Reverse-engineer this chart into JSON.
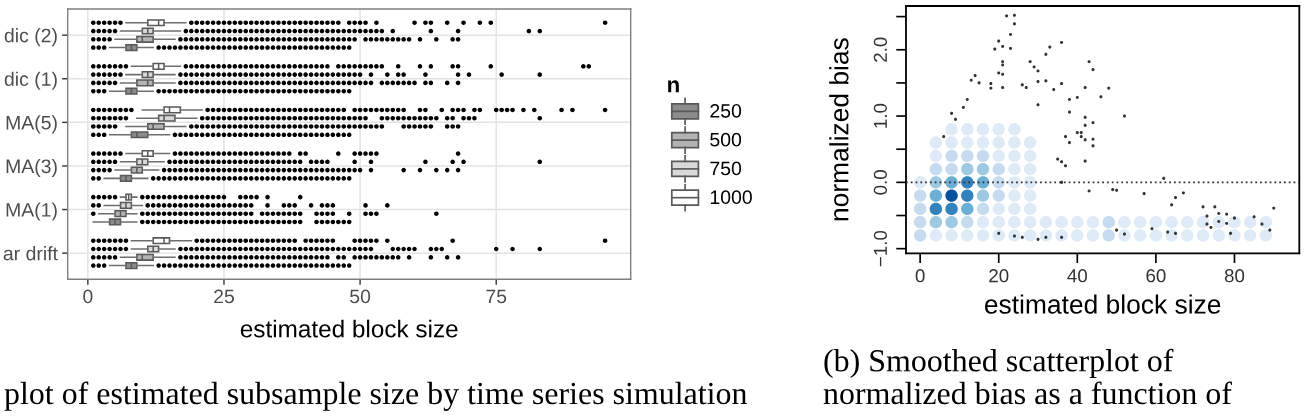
{
  "chart_data": [
    {
      "type": "box",
      "orientation": "horizontal",
      "categories": [
        "dic (2)",
        "dic (1)",
        "MA(5)",
        "MA(3)",
        "MA(1)",
        "ar drift"
      ],
      "xlabel": "estimated block size",
      "xlim": [
        -3.7,
        99.7
      ],
      "xticks": [
        0,
        25,
        50,
        75
      ],
      "grid": true,
      "marker": "circle",
      "legend": "right",
      "legend_title": "n",
      "annotations": [
        "plot of estimated subsample size by time series simulation"
      ],
      "series": [
        {
          "name": "250",
          "color": "#8c8c8c",
          "boxes": [
            {
              "low": 4,
              "q1": 7,
              "median": 8,
              "q3": 9,
              "high": 12,
              "outliers": [
                1,
                2,
                3,
                13,
                14,
                15,
                16,
                17,
                18,
                19,
                20,
                21,
                22,
                23,
                24,
                25,
                26,
                27,
                28,
                29,
                30,
                31,
                32,
                33,
                34,
                35,
                36,
                37,
                38,
                39,
                40,
                41,
                42,
                43,
                44,
                45,
                46,
                47,
                48
              ]
            },
            {
              "low": 4,
              "q1": 7,
              "median": 8,
              "q3": 9,
              "high": 12,
              "outliers": [
                1,
                2,
                3,
                13,
                14,
                15,
                16,
                17,
                18,
                19,
                20,
                21,
                22,
                23,
                24,
                25,
                26,
                27,
                28,
                29,
                30,
                31,
                32,
                33,
                34,
                35,
                36,
                37,
                38,
                39,
                40,
                41,
                42,
                43,
                44,
                45,
                46,
                47,
                48
              ]
            },
            {
              "low": 4,
              "q1": 8,
              "median": 9,
              "q3": 11,
              "high": 15,
              "outliers": [
                1,
                2,
                3,
                16,
                17,
                18,
                19,
                20,
                21,
                22,
                23,
                24,
                25,
                26,
                27,
                28,
                29,
                30,
                31,
                32,
                33,
                34,
                35,
                36,
                37,
                38,
                39,
                40,
                41,
                42,
                43,
                44,
                45,
                46,
                47,
                48
              ]
            },
            {
              "low": 3,
              "q1": 6,
              "median": 7,
              "q3": 8,
              "high": 11,
              "outliers": [
                1,
                2,
                12,
                13,
                14,
                15,
                16,
                17,
                18,
                19,
                20,
                21,
                22,
                23,
                24,
                25,
                26,
                27,
                28,
                29,
                30,
                31,
                32,
                33,
                34,
                35,
                36,
                37,
                38,
                39,
                40,
                41,
                42,
                43,
                44,
                45,
                46,
                47,
                48
              ]
            },
            {
              "low": 1,
              "q1": 4,
              "median": 5,
              "q3": 6,
              "high": 9,
              "outliers": [
                10,
                11,
                12,
                13,
                14,
                15,
                16,
                17,
                18,
                19,
                20,
                21,
                22,
                23,
                24,
                25,
                26,
                27,
                28,
                29,
                30,
                31,
                32,
                33,
                34,
                35,
                36,
                37,
                38,
                39,
                42,
                43,
                44,
                45,
                46,
                47,
                48
              ]
            },
            {
              "low": 4,
              "q1": 7,
              "median": 8,
              "q3": 9,
              "high": 12,
              "outliers": [
                1,
                2,
                3,
                13,
                14,
                15,
                16,
                17,
                18,
                19,
                20,
                21,
                22,
                23,
                24,
                25,
                26,
                27,
                28,
                29,
                30,
                31,
                32,
                33,
                34,
                35,
                36,
                37,
                38,
                39,
                40,
                41,
                42,
                43,
                44,
                45,
                46,
                47,
                48
              ]
            }
          ]
        },
        {
          "name": "500",
          "color": "#b3b3b3",
          "boxes": [
            {
              "low": 5,
              "q1": 9,
              "median": 10,
              "q3": 12,
              "high": 16,
              "outliers": [
                1,
                2,
                3,
                4,
                17,
                18,
                19,
                20,
                21,
                22,
                23,
                24,
                25,
                26,
                27,
                28,
                29,
                30,
                31,
                32,
                33,
                34,
                35,
                36,
                37,
                38,
                39,
                40,
                41,
                42,
                43,
                44,
                45,
                46,
                47,
                48,
                49,
                51,
                52,
                53,
                54,
                55,
                56,
                57,
                58,
                59,
                61,
                64,
                67,
                68
              ]
            },
            {
              "low": 6,
              "q1": 9,
              "median": 11,
              "q3": 12,
              "high": 16,
              "outliers": [
                1,
                2,
                3,
                4,
                5,
                17,
                18,
                19,
                20,
                21,
                22,
                23,
                24,
                25,
                26,
                27,
                28,
                29,
                30,
                31,
                32,
                33,
                34,
                35,
                36,
                37,
                38,
                39,
                40,
                41,
                42,
                43,
                44,
                45,
                46,
                47,
                48,
                49,
                50,
                51,
                52,
                54,
                55,
                56,
                57,
                58,
                59,
                60,
                62,
                63,
                66,
                68
              ]
            },
            {
              "low": 7,
              "q1": 11,
              "median": 12,
              "q3": 14,
              "high": 18,
              "outliers": [
                1,
                2,
                3,
                4,
                5,
                19,
                20,
                21,
                22,
                23,
                24,
                25,
                26,
                27,
                28,
                29,
                30,
                31,
                32,
                33,
                34,
                35,
                36,
                37,
                38,
                39,
                40,
                41,
                42,
                43,
                44,
                45,
                46,
                47,
                48,
                49,
                50,
                51,
                52,
                53,
                54,
                58,
                59,
                60,
                61,
                62,
                63,
                66,
                67,
                68
              ]
            },
            {
              "low": 5,
              "q1": 8,
              "median": 9,
              "q3": 10,
              "high": 13,
              "outliers": [
                1,
                2,
                3,
                4,
                14,
                15,
                16,
                17,
                18,
                19,
                20,
                21,
                22,
                23,
                24,
                25,
                26,
                27,
                28,
                29,
                30,
                31,
                32,
                33,
                34,
                35,
                36,
                37,
                38,
                39,
                40,
                41,
                42,
                43,
                44,
                45,
                46,
                47,
                48,
                49,
                50,
                52,
                58,
                61,
                64,
                66,
                68
              ]
            },
            {
              "low": 2,
              "q1": 5,
              "median": 6,
              "q3": 7,
              "high": 9,
              "outliers": [
                1,
                10,
                11,
                12,
                13,
                14,
                15,
                16,
                17,
                18,
                19,
                20,
                21,
                22,
                23,
                24,
                25,
                26,
                27,
                28,
                29,
                30,
                32,
                33,
                34,
                35,
                36,
                37,
                38,
                39,
                42,
                43,
                44,
                45,
                48,
                51,
                52,
                53,
                64
              ]
            },
            {
              "low": 6,
              "q1": 9,
              "median": 10,
              "q3": 12,
              "high": 16,
              "outliers": [
                1,
                2,
                3,
                4,
                5,
                17,
                18,
                19,
                20,
                21,
                22,
                23,
                24,
                25,
                26,
                27,
                28,
                29,
                30,
                31,
                32,
                33,
                34,
                35,
                36,
                37,
                38,
                39,
                40,
                41,
                42,
                43,
                44,
                46,
                47,
                49,
                50,
                51,
                52,
                53,
                54,
                55,
                56,
                57,
                59,
                63,
                66,
                68
              ]
            }
          ]
        },
        {
          "name": "750",
          "color": "#d9d9d9",
          "boxes": [
            {
              "low": 6,
              "q1": 10,
              "median": 11,
              "q3": 12,
              "high": 17,
              "outliers": [
                1,
                2,
                3,
                4,
                5,
                18,
                19,
                20,
                21,
                22,
                23,
                24,
                25,
                26,
                27,
                28,
                29,
                30,
                31,
                32,
                33,
                34,
                35,
                36,
                37,
                38,
                39,
                40,
                41,
                42,
                43,
                44,
                45,
                46,
                47,
                48,
                49,
                50,
                51,
                52,
                53,
                54,
                56,
                63,
                68,
                81,
                83
              ]
            },
            {
              "low": 7,
              "q1": 10,
              "median": 11,
              "q3": 12,
              "high": 16,
              "outliers": [
                1,
                2,
                3,
                4,
                5,
                6,
                17,
                18,
                19,
                20,
                21,
                22,
                23,
                24,
                25,
                26,
                27,
                28,
                29,
                30,
                31,
                32,
                33,
                34,
                35,
                36,
                37,
                38,
                39,
                40,
                41,
                42,
                43,
                44,
                45,
                46,
                47,
                48,
                49,
                50,
                52,
                55,
                57,
                58,
                62,
                68,
                70,
                76,
                83
              ]
            },
            {
              "low": 9,
              "q1": 13,
              "median": 14,
              "q3": 16,
              "high": 20,
              "outliers": [
                1,
                2,
                3,
                4,
                5,
                6,
                7,
                21,
                22,
                23,
                24,
                25,
                26,
                27,
                28,
                29,
                30,
                31,
                32,
                33,
                34,
                35,
                36,
                37,
                38,
                39,
                40,
                41,
                42,
                43,
                44,
                45,
                46,
                47,
                48,
                49,
                50,
                51,
                54,
                55,
                56,
                57,
                58,
                59,
                60,
                61,
                62,
                63,
                64,
                66,
                67,
                69,
                70,
                71,
                83
              ]
            },
            {
              "low": 6,
              "q1": 9,
              "median": 10,
              "q3": 11,
              "high": 14,
              "outliers": [
                1,
                2,
                3,
                4,
                5,
                15,
                16,
                17,
                18,
                19,
                20,
                21,
                22,
                23,
                24,
                25,
                26,
                27,
                28,
                29,
                30,
                31,
                32,
                33,
                34,
                35,
                36,
                37,
                38,
                39,
                41,
                42,
                43,
                44,
                49,
                52,
                62,
                67,
                69,
                83
              ]
            },
            {
              "low": 3,
              "q1": 6,
              "median": 7,
              "q3": 8,
              "high": 10,
              "outliers": [
                1,
                2,
                11,
                12,
                13,
                14,
                15,
                16,
                17,
                18,
                19,
                20,
                21,
                22,
                23,
                24,
                25,
                26,
                27,
                28,
                29,
                30,
                33,
                36,
                37,
                38,
                41,
                43,
                44,
                45,
                51,
                55
              ]
            },
            {
              "low": 8,
              "q1": 11,
              "median": 12,
              "q3": 13,
              "high": 16,
              "outliers": [
                1,
                2,
                3,
                4,
                5,
                6,
                7,
                17,
                18,
                19,
                20,
                21,
                22,
                23,
                24,
                25,
                26,
                27,
                28,
                29,
                30,
                31,
                32,
                33,
                34,
                35,
                36,
                37,
                38,
                39,
                40,
                41,
                42,
                43,
                44,
                45,
                46,
                47,
                48,
                49,
                50,
                51,
                52,
                56,
                57,
                58,
                59,
                60,
                63,
                64,
                65,
                75,
                78,
                83
              ]
            }
          ]
        },
        {
          "name": "1000",
          "color": "#ffffff",
          "boxes": [
            {
              "low": 7,
              "q1": 11,
              "median": 13,
              "q3": 14,
              "high": 18,
              "outliers": [
                1,
                2,
                3,
                4,
                5,
                6,
                19,
                20,
                21,
                22,
                23,
                24,
                25,
                26,
                27,
                28,
                29,
                30,
                31,
                32,
                33,
                34,
                35,
                36,
                37,
                38,
                39,
                40,
                41,
                42,
                43,
                44,
                45,
                46,
                48,
                49,
                50,
                51,
                53,
                60,
                62,
                63,
                66,
                69,
                72,
                74,
                95
              ]
            },
            {
              "low": 8,
              "q1": 12,
              "median": 13,
              "q3": 14,
              "high": 17,
              "outliers": [
                1,
                2,
                3,
                4,
                5,
                6,
                7,
                18,
                19,
                20,
                21,
                22,
                23,
                24,
                25,
                26,
                27,
                28,
                29,
                30,
                31,
                32,
                33,
                34,
                35,
                36,
                37,
                38,
                39,
                40,
                41,
                42,
                43,
                44,
                46,
                47,
                48,
                49,
                50,
                51,
                52,
                53,
                54,
                57,
                61,
                63,
                67,
                68,
                74,
                91,
                92
              ]
            },
            {
              "low": 10,
              "q1": 14,
              "median": 15,
              "q3": 17,
              "high": 21,
              "outliers": [
                1,
                2,
                3,
                4,
                5,
                6,
                7,
                8,
                22,
                23,
                24,
                25,
                26,
                27,
                28,
                29,
                30,
                31,
                32,
                33,
                34,
                35,
                36,
                37,
                38,
                39,
                40,
                41,
                42,
                43,
                44,
                45,
                46,
                47,
                49,
                50,
                51,
                52,
                53,
                54,
                55,
                56,
                57,
                58,
                61,
                62,
                65,
                67,
                68,
                69,
                71,
                72,
                75,
                76,
                77,
                78,
                80,
                82,
                87,
                89,
                95
              ]
            },
            {
              "low": 7,
              "q1": 10,
              "median": 11,
              "q3": 12,
              "high": 15,
              "outliers": [
                1,
                2,
                3,
                4,
                5,
                6,
                16,
                17,
                18,
                19,
                20,
                21,
                22,
                23,
                24,
                25,
                26,
                27,
                28,
                29,
                30,
                31,
                32,
                33,
                34,
                35,
                36,
                37,
                39,
                40,
                46,
                49,
                50,
                51,
                52,
                53,
                68
              ]
            },
            {
              "low": 6,
              "q1": 7,
              "median": 7.5,
              "q3": 8,
              "high": 9,
              "outliers": [
                1,
                2,
                3,
                4,
                5,
                10,
                11,
                12,
                13,
                14,
                15,
                16,
                17,
                18,
                19,
                20,
                21,
                22,
                23,
                24,
                25,
                28,
                29,
                30,
                31,
                33,
                39
              ]
            },
            {
              "low": 8,
              "q1": 12,
              "median": 14,
              "q3": 15,
              "high": 19,
              "outliers": [
                1,
                2,
                3,
                4,
                5,
                6,
                7,
                20,
                21,
                22,
                23,
                24,
                25,
                26,
                27,
                28,
                29,
                30,
                31,
                32,
                33,
                34,
                35,
                36,
                37,
                38,
                40,
                41,
                42,
                43,
                44,
                45,
                49,
                50,
                51,
                52,
                53,
                55,
                67,
                95
              ]
            }
          ]
        }
      ]
    },
    {
      "type": "scatter",
      "xlabel": "estimated block size",
      "ylabel": "normalized bias",
      "xlim": [
        -3.6,
        96.5
      ],
      "ylim": [
        -1.07,
        2.66
      ],
      "xticks": [
        0,
        20,
        40,
        60,
        80
      ],
      "yticks": [
        {
          "value": -1,
          "label": "−1.0"
        },
        {
          "value": -0.5,
          "label": null
        },
        {
          "value": 0,
          "label": "0.0"
        },
        {
          "value": 0.5,
          "label": null
        },
        {
          "value": 1,
          "label": "1.0"
        },
        {
          "value": 1.5,
          "label": null
        },
        {
          "value": 2,
          "label": "2.0"
        },
        {
          "value": 2.5,
          "label": null
        }
      ],
      "marker": "circle",
      "ref_lines": [
        {
          "axis": "y",
          "value": 0,
          "color": "#333333",
          "line_style": "dotted"
        }
      ],
      "annotations": [
        "(b) Smoothed scatterplot of\nnormalized bias as a function of"
      ],
      "series": [
        {
          "type": "bubble",
          "x": [
            8,
            12,
            16,
            20,
            24,
            4,
            8,
            12,
            16,
            20,
            24,
            28,
            4,
            8,
            12,
            16,
            20,
            24,
            28,
            4,
            8,
            12,
            16,
            20,
            24,
            28,
            0,
            4,
            8,
            12,
            16,
            20,
            24,
            28,
            0,
            4,
            8,
            12,
            16,
            20,
            24,
            28,
            0,
            4,
            8,
            12,
            16,
            20,
            24,
            28,
            0,
            4,
            8,
            12,
            16,
            20,
            24,
            28,
            32,
            36,
            40,
            44,
            48,
            52,
            56,
            60,
            64,
            68,
            72,
            76,
            80,
            84,
            88,
            0,
            4,
            8,
            12,
            16,
            20,
            24,
            28,
            32,
            36,
            40,
            44,
            48,
            52,
            56,
            60,
            64,
            68,
            72,
            76,
            80,
            84,
            88
          ],
          "values": [
            0.8,
            0.8,
            0.8,
            0.8,
            0.8,
            0.6,
            0.6,
            0.6,
            0.6,
            0.6,
            0.6,
            0.6,
            0.4,
            0.4,
            0.4,
            0.4,
            0.4,
            0.4,
            0.4,
            0.2,
            0.2,
            0.2,
            0.2,
            0.2,
            0.2,
            0.2,
            0.0,
            0.0,
            0.0,
            0.0,
            0.0,
            0.0,
            0.0,
            0.0,
            -0.2,
            -0.2,
            -0.2,
            -0.2,
            -0.2,
            -0.2,
            -0.2,
            -0.2,
            -0.4,
            -0.4,
            -0.4,
            -0.4,
            -0.4,
            -0.4,
            -0.4,
            -0.4,
            -0.6,
            -0.6,
            -0.6,
            -0.6,
            -0.6,
            -0.6,
            -0.6,
            -0.6,
            -0.6,
            -0.6,
            -0.6,
            -0.6,
            -0.6,
            -0.6,
            -0.6,
            -0.6,
            -0.6,
            -0.6,
            -0.6,
            -0.6,
            -0.6,
            -0.6,
            -0.6,
            -0.8,
            -0.8,
            -0.8,
            -0.8,
            -0.8,
            -0.8,
            -0.8,
            -0.8,
            -0.8,
            -0.8,
            -0.8,
            -0.8,
            -0.8,
            -0.8,
            -0.8,
            -0.8,
            -0.8,
            -0.8,
            -0.8,
            -0.8,
            -0.8,
            -0.8,
            -0.8
          ],
          "sizes": [
            1,
            1,
            1,
            1,
            1,
            1,
            1,
            1,
            1,
            1,
            1,
            1,
            1,
            1,
            1,
            1,
            1,
            1,
            1,
            1,
            1,
            1,
            1,
            1,
            1,
            1,
            1,
            1,
            1,
            1,
            1,
            1,
            1,
            1,
            1,
            1,
            1,
            1,
            1,
            1,
            1,
            1,
            1,
            1,
            1,
            1,
            1,
            1,
            1,
            1,
            1,
            1,
            1,
            1,
            1,
            1,
            1,
            1,
            1,
            1,
            1,
            1,
            1,
            1,
            1,
            1,
            1,
            1,
            1,
            1,
            1,
            1,
            1,
            1,
            1,
            1,
            1,
            1,
            1,
            1,
            1,
            1,
            1,
            1,
            1,
            1,
            1,
            1,
            1,
            1,
            1,
            1,
            1,
            1,
            1,
            1
          ],
          "colors": [
            "#deebf7",
            "#deebf7",
            "#deebf7",
            "#deebf7",
            "#deebf7",
            "#deebf7",
            "#deebf7",
            "#deebf7",
            "#deebf7",
            "#deebf7",
            "#deebf7",
            "#deebf7",
            "#deebf7",
            "#c6dbef",
            "#c6dbef",
            "#c6dbef",
            "#deebf7",
            "#deebf7",
            "#deebf7",
            "#c6dbef",
            "#c6dbef",
            "#9ecae1",
            "#9ecae1",
            "#c6dbef",
            "#deebf7",
            "#deebf7",
            "#deebf7",
            "#9ecae1",
            "#6baed6",
            "#3182bd",
            "#6baed6",
            "#c6dbef",
            "#deebf7",
            "#deebf7",
            "#c6dbef",
            "#6baed6",
            "#08519c",
            "#3182bd",
            "#9ecae1",
            "#c6dbef",
            "#deebf7",
            "#deebf7",
            "#c6dbef",
            "#3182bd",
            "#3182bd",
            "#6baed6",
            "#c6dbef",
            "#deebf7",
            "#deebf7",
            "#deebf7",
            "#c6dbef",
            "#9ecae1",
            "#9ecae1",
            "#c6dbef",
            "#deebf7",
            "#deebf7",
            "#deebf7",
            "#deebf7",
            "#deebf7",
            "#deebf7",
            "#deebf7",
            "#deebf7",
            "#c6dbef",
            "#deebf7",
            "#deebf7",
            "#deebf7",
            "#deebf7",
            "#deebf7",
            "#deebf7",
            "#deebf7",
            "#deebf7",
            "#deebf7",
            "#deebf7",
            "#c6dbef",
            "#deebf7",
            "#deebf7",
            "#deebf7",
            "#deebf7",
            "#deebf7",
            "#deebf7",
            "#deebf7",
            "#deebf7",
            "#deebf7",
            "#deebf7",
            "#deebf7",
            "#c6dbef",
            "#deebf7",
            "#deebf7",
            "#deebf7",
            "#deebf7",
            "#deebf7",
            "#deebf7",
            "#deebf7",
            "#deebf7",
            "#deebf7",
            "#deebf7"
          ]
        },
        {
          "type": "scatter",
          "color": "#333333",
          "x": [
            22,
            24,
            24,
            23,
            20,
            21,
            19,
            23,
            36,
            33,
            32,
            21,
            21,
            28,
            29,
            30,
            43,
            44,
            20,
            21,
            14,
            13,
            15,
            18,
            18,
            21,
            26,
            27,
            30,
            32,
            36,
            34,
            42,
            48,
            46,
            12,
            11,
            30,
            40,
            38,
            38,
            8,
            9,
            52,
            42,
            44,
            42,
            40,
            41,
            37,
            38,
            41,
            42,
            44,
            44,
            6,
            35,
            36,
            37,
            42,
            62,
            36,
            43,
            49,
            50,
            57,
            67,
            65,
            64,
            72,
            75,
            76,
            78,
            73,
            80,
            85,
            90,
            76,
            78,
            73,
            74,
            87,
            89,
            79,
            50,
            52,
            59,
            63,
            65,
            20,
            24,
            26,
            30,
            32,
            36
          ],
          "values": [
            2.51,
            2.52,
            2.39,
            2.23,
            2.13,
            2.05,
            2.01,
            2.02,
            2.11,
            2.04,
            1.93,
            1.82,
            1.77,
            1.82,
            1.74,
            1.68,
            1.82,
            1.7,
            1.65,
            1.63,
            1.61,
            1.54,
            1.5,
            1.49,
            1.42,
            1.43,
            1.47,
            1.43,
            1.52,
            1.53,
            1.49,
            1.4,
            1.43,
            1.42,
            1.29,
            1.25,
            1.13,
            1.17,
            1.28,
            1.25,
            1.06,
            1.04,
            0.95,
            1.0,
            0.98,
            0.9,
            0.86,
            0.75,
            0.75,
            0.69,
            0.6,
            0.69,
            0.64,
            0.65,
            0.55,
            0.69,
            0.35,
            0.31,
            0.25,
            0.32,
            0.06,
            0.0,
            -0.13,
            -0.11,
            -0.12,
            -0.17,
            -0.16,
            -0.23,
            -0.34,
            -0.37,
            -0.37,
            -0.47,
            -0.48,
            -0.51,
            -0.54,
            -0.52,
            -0.39,
            -0.59,
            -0.62,
            -0.63,
            -0.68,
            -0.63,
            -0.72,
            -0.77,
            -0.72,
            -0.78,
            -0.7,
            -0.75,
            -0.77,
            -0.77,
            -0.81,
            -0.83,
            -0.86,
            -0.83,
            -0.83
          ]
        }
      ]
    }
  ]
}
